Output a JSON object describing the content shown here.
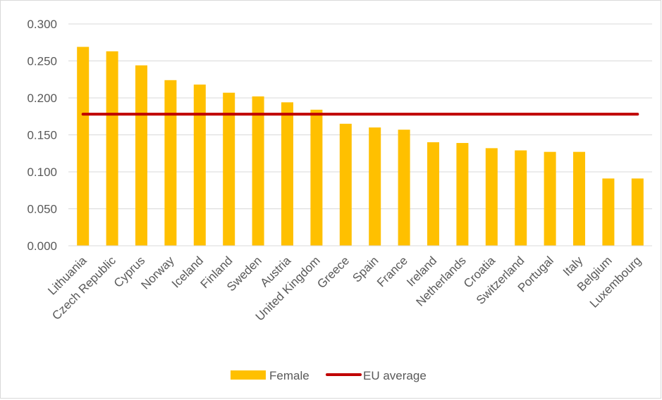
{
  "chart_data": {
    "type": "bar",
    "categories": [
      "Lithuania",
      "Czech Republic",
      "Cyprus",
      "Norway",
      "Iceland",
      "Finland",
      "Sweden",
      "Austria",
      "United Kingdom",
      "Greece",
      "Spain",
      "France",
      "Ireland",
      "Netherlands",
      "Croatia",
      "Switzerland",
      "Portugal",
      "Italy",
      "Belgium",
      "Luxembourg"
    ],
    "series": [
      {
        "name": "Female",
        "kind": "bar",
        "color": "#ffc000",
        "values": [
          0.269,
          0.263,
          0.244,
          0.224,
          0.218,
          0.207,
          0.202,
          0.194,
          0.184,
          0.165,
          0.16,
          0.157,
          0.14,
          0.139,
          0.132,
          0.129,
          0.127,
          0.127,
          0.091,
          0.091
        ]
      },
      {
        "name": "EU average",
        "kind": "line",
        "color": "#c00000",
        "value": 0.178
      }
    ],
    "yticks": [
      "0.000",
      "0.050",
      "0.100",
      "0.150",
      "0.200",
      "0.250",
      "0.300"
    ],
    "ylim": [
      0,
      0.3
    ],
    "grid": true,
    "legend": "bottom-center",
    "title": "",
    "xlabel": "",
    "ylabel": ""
  }
}
